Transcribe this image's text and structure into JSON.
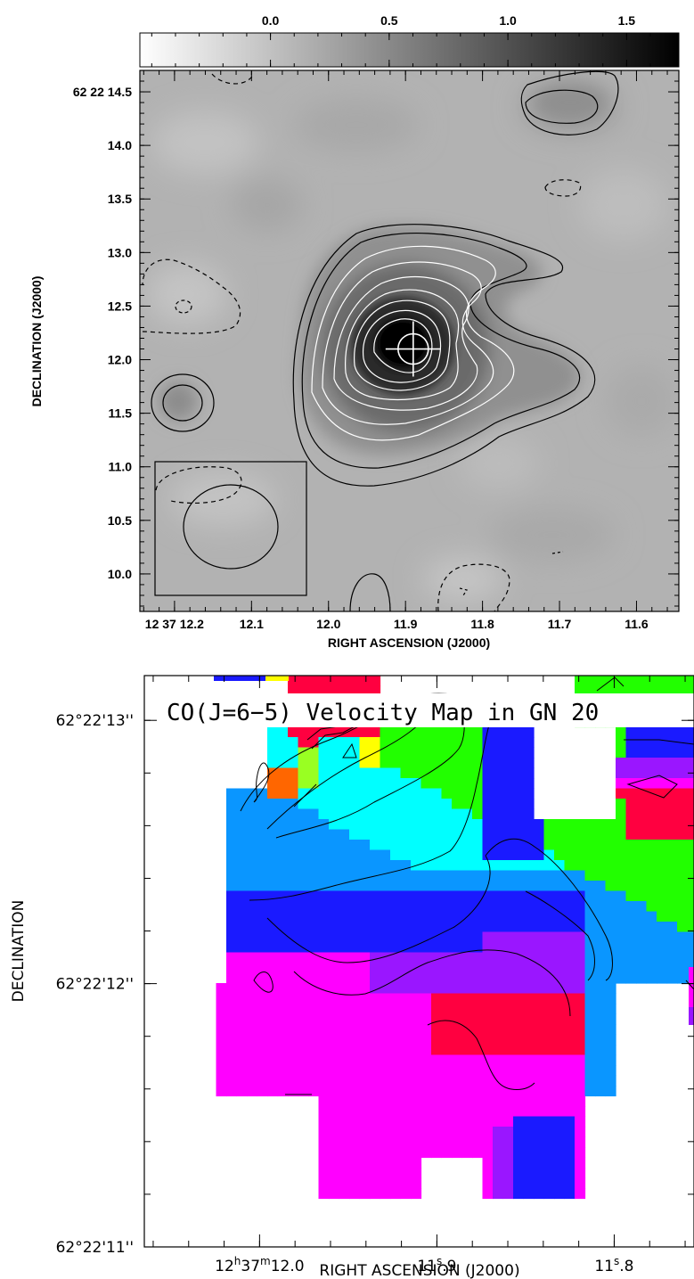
{
  "chart_data": [
    {
      "type": "heatmap",
      "panel": "top",
      "title": "",
      "colorbar": {
        "ticks": [
          "0.0",
          "0.5",
          "1.0",
          "1.5"
        ],
        "tick_values": [
          0.0,
          0.5,
          1.0,
          1.5
        ],
        "range": [
          -0.55,
          1.72
        ],
        "colors": [
          "#ffffff",
          "#000000"
        ]
      },
      "xlabel": "RIGHT ASCENSION (J2000)",
      "ylabel": "DECLINATION (J2000)",
      "x_ticks": [
        {
          "label": "12 37 12.2",
          "value": 12.2
        },
        {
          "label": "12.1",
          "value": 12.1
        },
        {
          "label": "12.0",
          "value": 12.0
        },
        {
          "label": "11.9",
          "value": 11.9
        },
        {
          "label": "11.8",
          "value": 11.8
        },
        {
          "label": "11.7",
          "value": 11.7
        },
        {
          "label": "11.6",
          "value": 11.6
        }
      ],
      "y_ticks": [
        {
          "label": "62 22 14.5",
          "value": 14.5
        },
        {
          "label": "14.0",
          "value": 14.0
        },
        {
          "label": "13.5",
          "value": 13.5
        },
        {
          "label": "13.0",
          "value": 13.0
        },
        {
          "label": "12.5",
          "value": 12.5
        },
        {
          "label": "12.0",
          "value": 12.0
        },
        {
          "label": "11.5",
          "value": 11.5
        },
        {
          "label": "11.0",
          "value": 11.0
        },
        {
          "label": "10.5",
          "value": 10.5
        },
        {
          "label": "10.0",
          "value": 10.0
        }
      ],
      "xlim": [
        12.245,
        11.545
      ],
      "ylim": [
        9.65,
        14.7
      ],
      "peak": {
        "x": 11.89,
        "y": 12.1,
        "value": 1.7
      },
      "grid": false
    },
    {
      "type": "heatmap",
      "panel": "bottom",
      "title": "CO(J=6−5) Velocity Map in GN 20",
      "xlabel": "RIGHT ASCENSION (J2000)",
      "ylabel": "DECLINATION",
      "x_ticks": [
        {
          "label_main": "12",
          "label_h": "h",
          "label_mid": "37",
          "label_m": "m",
          "label_sec": "12",
          "label_frac": ".0",
          "value": 12.0
        },
        {
          "label_main": "11",
          "label_s": "s",
          "label_frac": ".9",
          "value": 11.9
        },
        {
          "label_main": "11",
          "label_s": "s",
          "label_frac": ".8",
          "value": 11.8
        }
      ],
      "y_ticks": [
        {
          "label": "62°22'13''",
          "value": 13.0
        },
        {
          "label": "62°22'12''",
          "value": 12.0
        },
        {
          "label": "62°22'11''",
          "value": 11.0
        }
      ],
      "xlim": [
        12.065,
        11.755
      ],
      "ylim": [
        11.0,
        13.17
      ],
      "colors": {
        "red": "#ff0040",
        "magenta": "#ff00ff",
        "purple": "#9a16ff",
        "blue": "#1a1aff",
        "azure": "#0a96ff",
        "cyan": "#00ffff",
        "green": "#22ff00",
        "lime": "#99ff22",
        "yellow": "#ffff00",
        "orange": "#ff6600"
      },
      "grid": false
    }
  ]
}
